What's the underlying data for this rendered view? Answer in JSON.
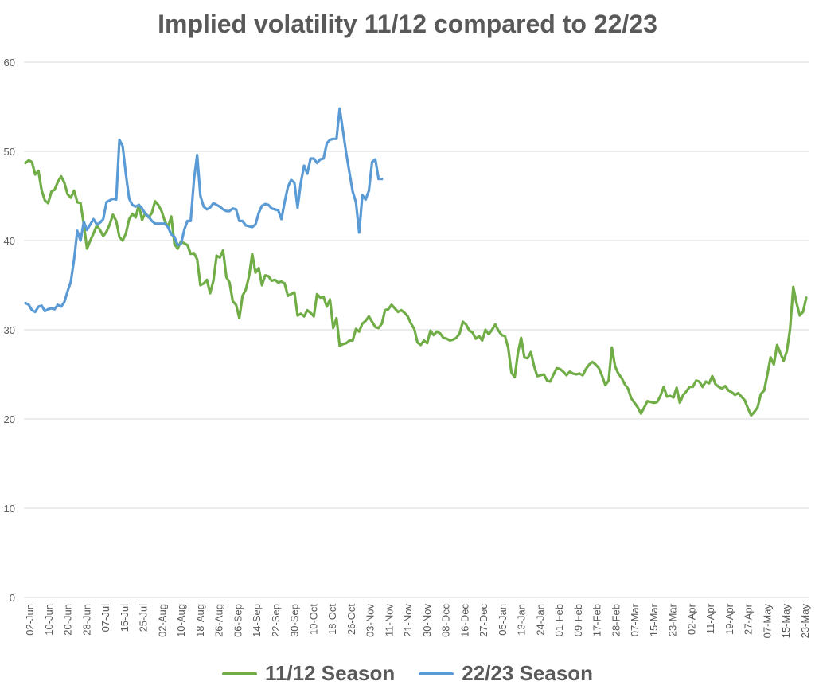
{
  "chart_data": {
    "type": "line",
    "title": "Implied volatility 11/12 compared to 22/23",
    "xlabel": "",
    "ylabel": "",
    "ylim": [
      0,
      60
    ],
    "yticks": [
      0,
      10,
      20,
      30,
      40,
      50,
      60
    ],
    "grid": true,
    "legend_position": "bottom",
    "x_tick_labels": [
      "02-Jun",
      "10-Jun",
      "20-Jun",
      "28-Jun",
      "07-Jul",
      "15-Jul",
      "25-Jul",
      "02-Aug",
      "10-Aug",
      "18-Aug",
      "26-Aug",
      "06-Sep",
      "14-Sep",
      "22-Sep",
      "30-Sep",
      "10-Oct",
      "18-Oct",
      "26-Oct",
      "03-Nov",
      "11-Nov",
      "21-Nov",
      "30-Nov",
      "08-Dec",
      "16-Dec",
      "27-Dec",
      "05-Jan",
      "13-Jan",
      "24-Jan",
      "01-Feb",
      "09-Feb",
      "17-Feb",
      "28-Feb",
      "07-Mar",
      "15-Mar",
      "23-Mar",
      "02-Apr",
      "11-Apr",
      "19-Apr",
      "27-Apr",
      "07-May",
      "15-May",
      "23-May"
    ],
    "series": [
      {
        "name": "11/12 Season",
        "color": "#70ad47",
        "values": [
          48.7,
          49.0,
          48.8,
          47.4,
          47.8,
          45.6,
          44.5,
          44.2,
          45.5,
          45.7,
          46.6,
          47.2,
          46.5,
          45.2,
          44.8,
          45.6,
          44.3,
          44.2,
          41.8,
          39.1,
          40.0,
          40.8,
          41.7,
          41.2,
          40.5,
          41.0,
          41.8,
          42.9,
          42.2,
          40.4,
          40.0,
          40.8,
          42.4,
          43.0,
          42.6,
          44.0,
          42.3,
          43.1,
          42.6,
          43.1,
          44.4,
          44.0,
          43.3,
          42.2,
          41.5,
          42.7,
          39.6,
          39.1,
          39.9,
          39.7,
          39.5,
          38.5,
          38.6,
          37.9,
          35.0,
          35.2,
          35.6,
          34.1,
          35.5,
          38.3,
          38.1,
          38.9,
          35.9,
          35.3,
          33.2,
          32.8,
          31.3,
          33.8,
          34.5,
          36.0,
          38.5,
          36.4,
          36.9,
          35.0,
          36.1,
          36.0,
          35.5,
          35.6,
          35.3,
          35.4,
          35.2,
          33.8,
          34.0,
          34.2,
          31.6,
          31.8,
          31.5,
          32.2,
          31.9,
          31.5,
          34.0,
          33.6,
          33.7,
          32.6,
          33.4,
          30.2,
          31.3,
          28.2,
          28.4,
          28.5,
          28.8,
          28.8,
          30.1,
          29.8,
          30.7,
          31.0,
          31.5,
          30.9,
          30.3,
          30.2,
          30.7,
          32.2,
          32.3,
          32.8,
          32.4,
          32.0,
          32.2,
          31.9,
          31.5,
          30.7,
          30.1,
          28.6,
          28.3,
          28.8,
          28.5,
          29.9,
          29.4,
          29.8,
          29.6,
          29.1,
          29.0,
          28.8,
          28.9,
          29.1,
          29.6,
          30.9,
          30.6,
          29.9,
          29.7,
          29.0,
          29.3,
          28.8,
          30.0,
          29.5,
          30.0,
          30.6,
          29.9,
          29.4,
          29.3,
          28.0,
          25.2,
          24.7,
          27.4,
          29.1,
          26.9,
          26.8,
          27.5,
          25.9,
          24.8,
          24.9,
          25.0,
          24.3,
          24.2,
          25.0,
          25.7,
          25.6,
          25.3,
          24.9,
          25.3,
          25.1,
          25.0,
          25.1,
          24.9,
          25.6,
          26.1,
          26.4,
          26.1,
          25.7,
          24.8,
          23.8,
          24.3,
          28.0,
          25.9,
          25.1,
          24.6,
          23.9,
          23.4,
          22.3,
          21.8,
          21.3,
          20.6,
          21.3,
          22.0,
          21.9,
          21.8,
          21.9,
          22.6,
          23.6,
          22.5,
          22.6,
          22.4,
          23.5,
          21.8,
          22.7,
          23.1,
          23.6,
          23.6,
          24.3,
          24.2,
          23.6,
          24.2,
          24.0,
          24.8,
          23.9,
          23.6,
          23.4,
          23.7,
          23.2,
          23.0,
          22.7,
          22.9,
          22.5,
          22.1,
          21.2,
          20.4,
          20.8,
          21.3,
          22.8,
          23.2,
          25.0,
          26.9,
          26.1,
          28.3,
          27.4,
          26.5,
          27.6,
          30.0,
          34.8,
          33.0,
          31.6,
          32.0,
          33.6
        ]
      },
      {
        "name": "22/23 Season",
        "color": "#5b9bd5",
        "values": [
          33.0,
          32.8,
          32.2,
          32.0,
          32.6,
          32.7,
          32.1,
          32.3,
          32.4,
          32.3,
          32.8,
          32.6,
          33.1,
          34.3,
          35.4,
          37.9,
          41.1,
          40.0,
          42.1,
          41.2,
          41.8,
          42.4,
          41.8,
          42.0,
          42.4,
          44.3,
          44.5,
          44.7,
          44.6,
          51.3,
          50.6,
          47.4,
          44.7,
          44.0,
          43.8,
          44.0,
          43.6,
          43.0,
          42.7,
          42.2,
          41.9,
          41.9,
          41.9,
          41.9,
          41.5,
          40.7,
          40.4,
          39.5,
          39.6,
          41.2,
          42.2,
          42.2,
          46.8,
          49.6,
          45.0,
          43.8,
          43.5,
          43.7,
          44.2,
          44.0,
          43.8,
          43.5,
          43.3,
          43.3,
          43.6,
          43.5,
          42.2,
          42.2,
          41.7,
          41.6,
          41.5,
          41.8,
          43.1,
          43.9,
          44.1,
          44.0,
          43.6,
          43.5,
          43.4,
          42.4,
          44.3,
          46.0,
          46.8,
          46.5,
          43.7,
          46.5,
          48.4,
          47.5,
          49.2,
          49.2,
          48.7,
          49.1,
          49.2,
          50.9,
          51.3,
          51.4,
          51.4,
          54.8,
          52.3,
          49.8,
          47.6,
          45.5,
          44.3,
          40.9,
          45.1,
          44.6,
          45.6,
          48.8,
          49.1,
          46.9,
          46.9
        ]
      }
    ]
  },
  "legend": {
    "items": [
      {
        "label": "11/12 Season",
        "color": "#70ad47"
      },
      {
        "label": "22/23 Season",
        "color": "#5b9bd5"
      }
    ]
  },
  "colors": {
    "grid": "#d9d9d9",
    "axis_text": "#595959"
  }
}
